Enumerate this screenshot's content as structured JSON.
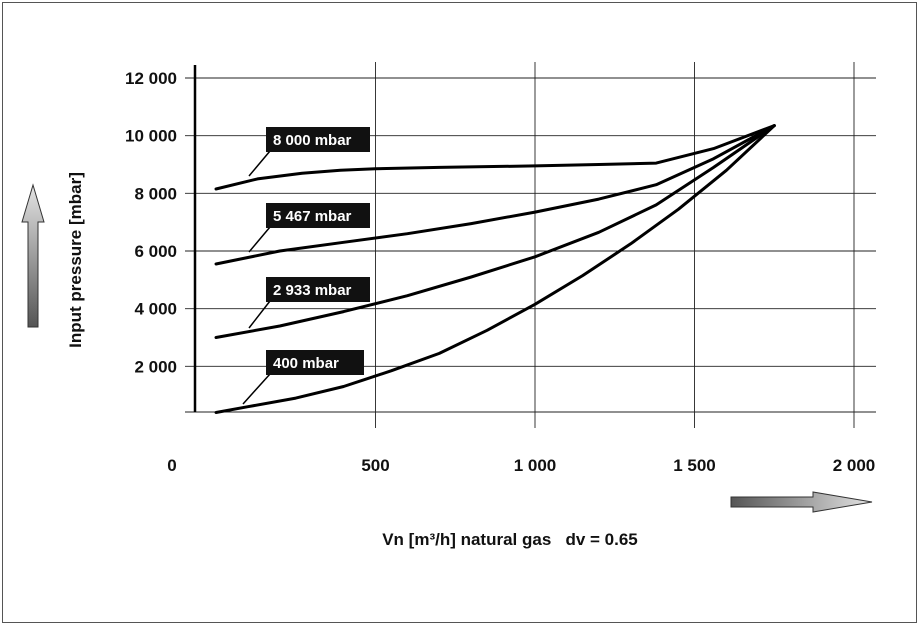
{
  "chart_data": {
    "type": "line",
    "title": "",
    "xlabel": "Vn [m³/h] natural gas   dv = 0.65",
    "ylabel": "Input pressure [mbar]",
    "xlim": [
      0,
      2000
    ],
    "ylim": [
      0,
      12000
    ],
    "x_ticks": [
      {
        "value": 0,
        "label": "0"
      },
      {
        "value": 500,
        "label": "500"
      },
      {
        "value": 1000,
        "label": "1 000"
      },
      {
        "value": 1500,
        "label": "1 500"
      },
      {
        "value": 2000,
        "label": "2 000"
      }
    ],
    "y_ticks": [
      {
        "value": 2000,
        "label": "2 000"
      },
      {
        "value": 4000,
        "label": "4 000"
      },
      {
        "value": 6000,
        "label": "6 000"
      },
      {
        "value": 8000,
        "label": "8 000"
      },
      {
        "value": 10000,
        "label": "10 000"
      },
      {
        "value": 12000,
        "label": "12 000"
      }
    ],
    "grid": true,
    "series": [
      {
        "name": "8 000 mbar",
        "color": "#000000",
        "x": [
          0,
          130,
          270,
          390,
          500,
          700,
          1000,
          1200,
          1380,
          1560,
          1750
        ],
        "y": [
          8150,
          8500,
          8700,
          8800,
          8850,
          8900,
          8950,
          9000,
          9050,
          9550,
          10350
        ]
      },
      {
        "name": "5 467 mbar",
        "color": "#000000",
        "x": [
          0,
          200,
          400,
          600,
          800,
          1000,
          1200,
          1380,
          1560,
          1750
        ],
        "y": [
          5550,
          6000,
          6300,
          6600,
          6950,
          7350,
          7800,
          8300,
          9200,
          10350
        ]
      },
      {
        "name": "2 933 mbar",
        "color": "#000000",
        "x": [
          0,
          200,
          400,
          600,
          800,
          1000,
          1200,
          1380,
          1560,
          1750
        ],
        "y": [
          3000,
          3400,
          3900,
          4450,
          5100,
          5800,
          6650,
          7600,
          8900,
          10350
        ]
      },
      {
        "name": "400 mbar",
        "color": "#000000",
        "x": [
          0,
          100,
          250,
          400,
          550,
          700,
          850,
          1000,
          1150,
          1300,
          1450,
          1600,
          1750
        ],
        "y": [
          400,
          600,
          900,
          1300,
          1850,
          2450,
          3250,
          4150,
          5150,
          6250,
          7450,
          8800,
          10350
        ]
      }
    ]
  }
}
